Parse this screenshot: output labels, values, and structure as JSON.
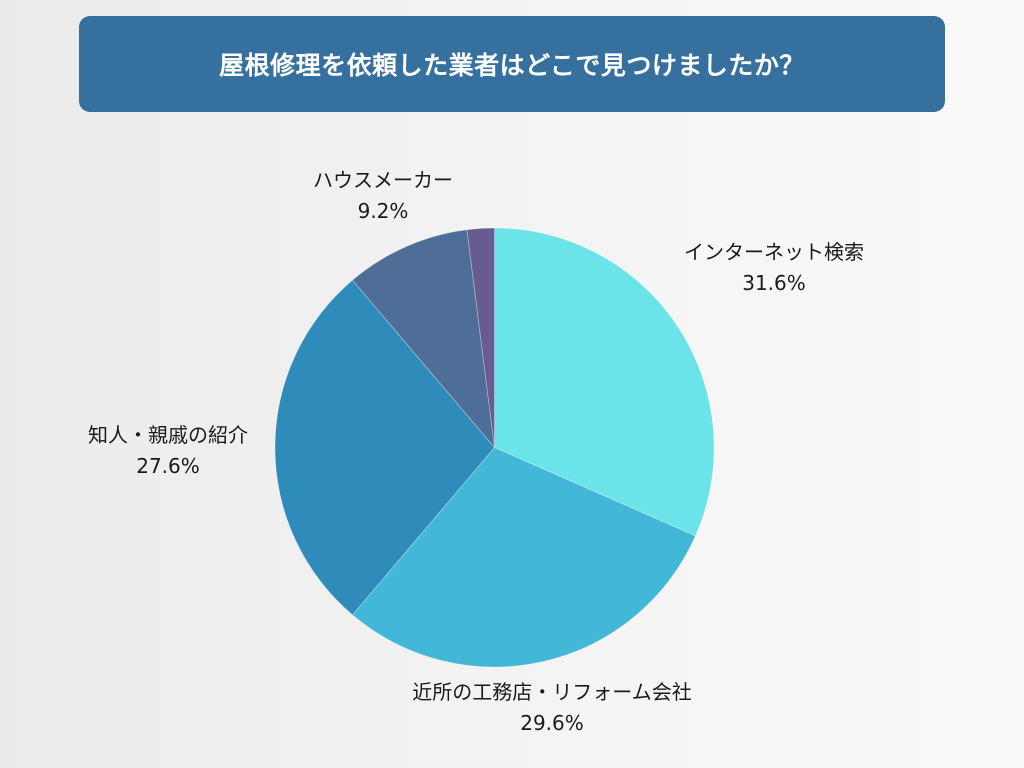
{
  "title": "屋根修理を依頼した業者はどこで見つけましたか？",
  "colors": {
    "banner": "#36709f",
    "background_left": "#ebebeb",
    "background_right": "#fafafa",
    "label_text": "#1a1a1a"
  },
  "chart_data": {
    "type": "pie",
    "title": "屋根修理を依頼した業者はどこで見つけましたか？",
    "start_angle": "12 o'clock",
    "direction": "clockwise",
    "legend": "none (direct labels)",
    "slices": [
      {
        "label": "インターネット検索",
        "value": 31.6,
        "display": "31.6%",
        "color": "#6ae4e8"
      },
      {
        "label": "近所の工務店・リフォーム会社",
        "value": 29.6,
        "display": "29.6%",
        "color": "#43b7d7"
      },
      {
        "label": "知人・親戚の紹介",
        "value": 27.6,
        "display": "27.6%",
        "color": "#2e8bba"
      },
      {
        "label": "ハウスメーカー",
        "value": 9.2,
        "display": "9.2%",
        "color": "#4e6e98"
      },
      {
        "label": "",
        "value": 2.0,
        "display": "",
        "color": "#675b91"
      }
    ]
  },
  "labels": {
    "internet": {
      "name": "インターネット検索",
      "pct": "31.6%"
    },
    "local": {
      "name": "近所の工務店・リフォーム会社",
      "pct": "29.6%"
    },
    "referral": {
      "name": "知人・親戚の紹介",
      "pct": "27.6%"
    },
    "housemaker": {
      "name": "ハウスメーカー",
      "pct": "9.2%"
    }
  }
}
